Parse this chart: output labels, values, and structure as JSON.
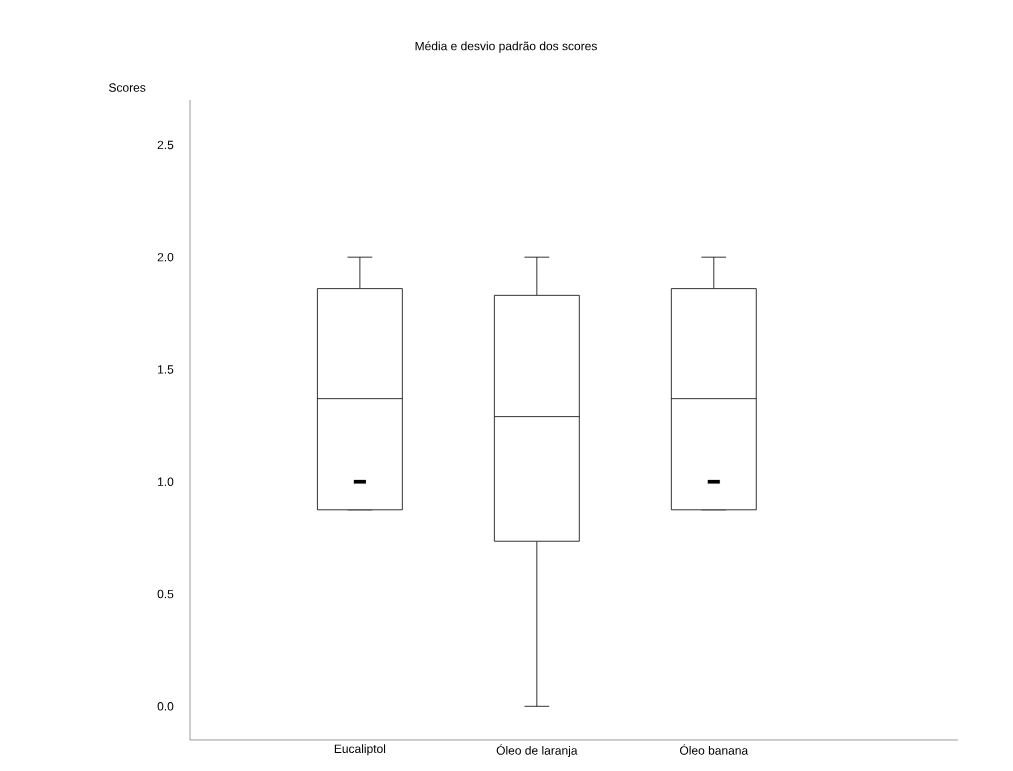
{
  "chart_data": {
    "type": "box",
    "title": "Média e desvio padrão dos scores",
    "ylabel": "Scores",
    "categories": [
      "Eucaliptol",
      "Óleo de laranja",
      "Óleo  banana"
    ],
    "boxes": [
      {
        "low": 0.875,
        "q1": 0.875,
        "median": 1.37,
        "q3": 1.86,
        "high": 2.0
      },
      {
        "low": 0.0,
        "q1": 0.735,
        "median": 1.29,
        "q3": 1.83,
        "high": 2.0
      },
      {
        "low": 0.875,
        "q1": 0.875,
        "median": 1.37,
        "q3": 1.86,
        "high": 2.0
      }
    ],
    "series": [
      {
        "type": "scatter",
        "x": [
          "Eucaliptol",
          "Óleo  banana"
        ],
        "values": [
          1.0,
          1.0
        ],
        "color": "#000000"
      }
    ],
    "color": "#000000",
    "ylim": [
      -0.15,
      2.7
    ],
    "yticks": [
      {
        "value": 0,
        "label": "0.0"
      },
      {
        "value": 0.5,
        "label": "0.5"
      },
      {
        "value": 1,
        "label": "1.0"
      },
      {
        "value": 1.5,
        "label": "1.5"
      },
      {
        "value": 2,
        "label": "2.0"
      },
      {
        "value": 2.5,
        "label": "2.5"
      }
    ]
  }
}
